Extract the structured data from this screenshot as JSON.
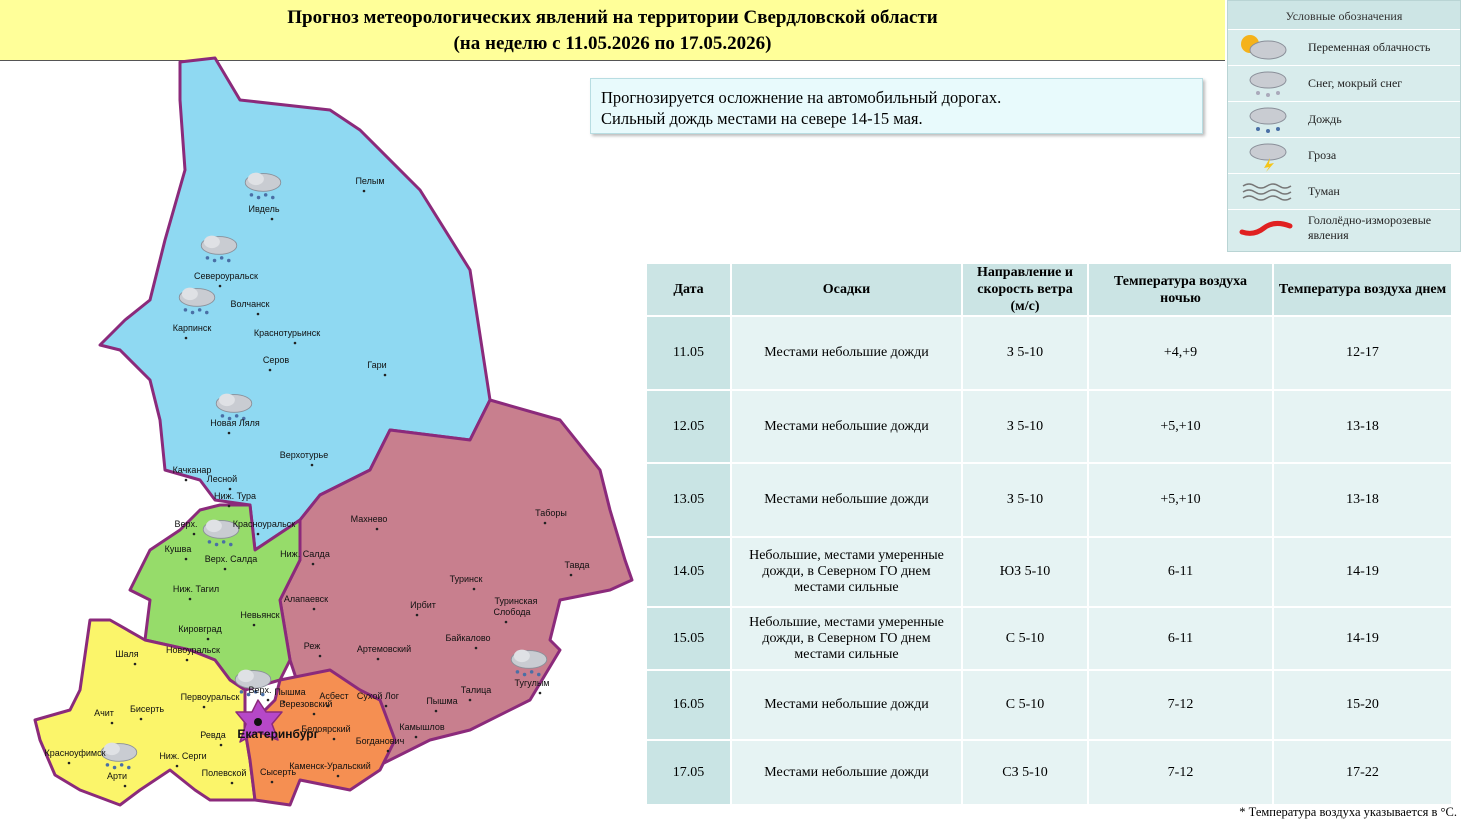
{
  "header": {
    "title": "Прогноз метеорологических явлений на территории Свердловской области",
    "subtitle": "(на неделю с 11.05.2026 по 17.05.2026)"
  },
  "alert": [
    "Прогнозируется осложнение на автомобильный дорогах.",
    "Сильный дождь местами на севере 14-15 мая."
  ],
  "legend": {
    "title": "Условные обозначения",
    "items": [
      "Переменная облачность",
      "Снег, мокрый снег",
      "Дождь",
      "Гроза",
      "Туман",
      "Гололёдно-изморозевые явления"
    ]
  },
  "table": {
    "header": [
      "Дата",
      "Осадки",
      "Направление и скорость ветра (м/с)",
      "Температура воздуха ночью",
      "Температура воздуха днем"
    ],
    "rows": [
      [
        "11.05",
        "Местами небольшие дожди",
        "З 5-10",
        "+4,+9",
        "12-17"
      ],
      [
        "12.05",
        "Местами небольшие дожди",
        "З 5-10",
        "+5,+10",
        "13-18"
      ],
      [
        "13.05",
        "Местами небольшие дожди",
        "З 5-10",
        "+5,+10",
        "13-18"
      ],
      [
        "14.05",
        "Небольшие, местами умеренные дожди, в Северном ГО днем местами сильные",
        "ЮЗ 5-10",
        "6-11",
        "14-19"
      ],
      [
        "15.05",
        "Небольшие, местами умеренные дожди, в Северном ГО днем местами сильные",
        "С 5-10",
        "6-11",
        "14-19"
      ],
      [
        "16.05",
        "Местами небольшие дожди",
        "С 5-10",
        "7-12",
        "15-20"
      ],
      [
        "17.05",
        "Местами небольшие дожди",
        "СЗ 5-10",
        "7-12",
        "17-22"
      ]
    ]
  },
  "footnote": "* Температура воздуха указывается в °С.",
  "map": {
    "places": [
      "Пелым",
      "Ивдель",
      "Североуральск",
      "Волчанск",
      "Карпинск",
      "Краснотурьинск",
      "Серов",
      "Гари",
      "Новая Ляля",
      "Верхотурье",
      "Качканар",
      "Лесной",
      "Ниж. Тура",
      "Верх.",
      "Красноуральск",
      "Кушва",
      "Верх. Салда",
      "Ниж. Салда",
      "Ниж. Тагил",
      "Махнево",
      "Таборы",
      "Туринск",
      "Тавда",
      "Алапаевск",
      "Невьянск",
      "Кировград",
      "Новоуральск",
      "Реж",
      "Ирбит",
      "Туринская",
      "Слобода",
      "Байкалово",
      "Артемовский",
      "Шаля",
      "Первоуральск",
      "Верх.",
      "Пышма",
      "Березовский",
      "Асбест",
      "Сухой Лог",
      "Талица",
      "Тугулым",
      "Пышма",
      "Ачит",
      "Бисерть",
      "Ревда",
      "Екатеринбург",
      "Белоярский",
      "Камышлов",
      "Богданович",
      "Красноуфимск",
      "Арти",
      "Ниж. Серги",
      "Полевской",
      "Сысерть",
      "Каменск-Уральский"
    ]
  }
}
